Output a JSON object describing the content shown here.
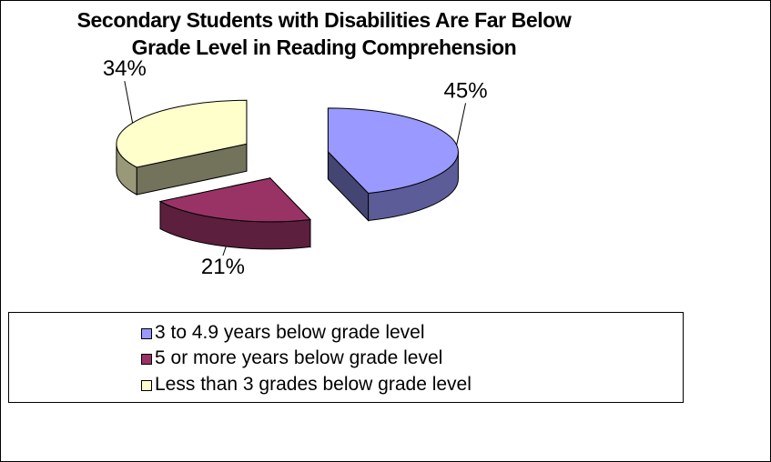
{
  "chart_data": {
    "type": "pie",
    "title": "Secondary Students with Disabilities Are Far Below Grade Level in Reading Comprehension",
    "title_lines": [
      "Secondary Students with Disabilities Are Far Below",
      "Grade Level in Reading Comprehension"
    ],
    "style": "3d-exploded",
    "categories": [
      "3 to 4.9 years below grade level",
      "5 or more years below grade level",
      "Less than 3 grades below grade level"
    ],
    "values": [
      45,
      21,
      34
    ],
    "data_labels": [
      "45%",
      "21%",
      "34%"
    ],
    "colors": [
      "#9999ff",
      "#993366",
      "#ffffcc"
    ],
    "legend_placement": "bottom"
  }
}
